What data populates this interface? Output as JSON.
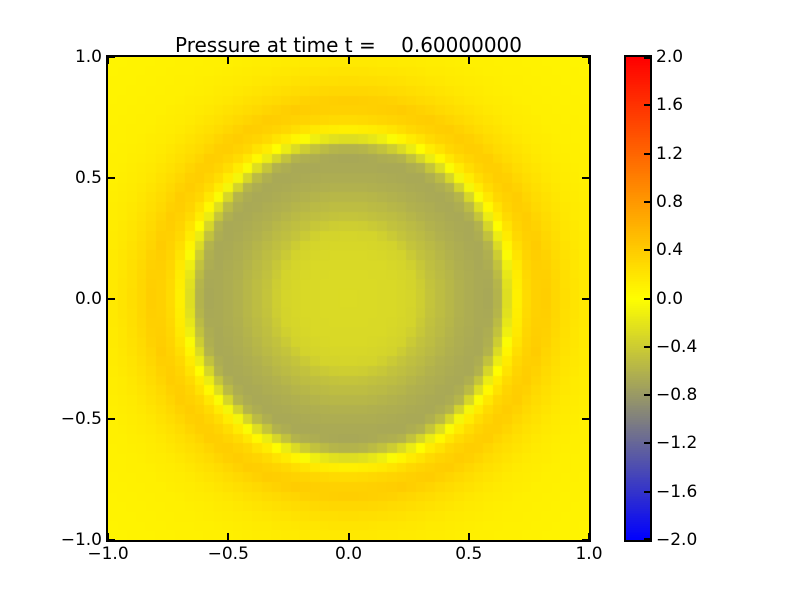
{
  "figure": {
    "background": "#ffffff",
    "frame_color": "#000000"
  },
  "title": "Pressure at time t =    0.60000000",
  "axes": {
    "x_ticks": [
      {
        "value": -1.0,
        "label": "−1.0"
      },
      {
        "value": -0.5,
        "label": "−0.5"
      },
      {
        "value": 0.0,
        "label": "0.0"
      },
      {
        "value": 0.5,
        "label": "0.5"
      },
      {
        "value": 1.0,
        "label": "1.0"
      }
    ],
    "y_ticks": [
      {
        "value": 1.0,
        "label": "1.0"
      },
      {
        "value": 0.5,
        "label": "0.5"
      },
      {
        "value": 0.0,
        "label": "0.0"
      },
      {
        "value": -0.5,
        "label": "−0.5"
      },
      {
        "value": -1.0,
        "label": "−1.0"
      }
    ]
  },
  "colorbar": {
    "vmin": -2.0,
    "vmax": 2.0,
    "ticks": [
      {
        "value": 2.0,
        "label": "2.0"
      },
      {
        "value": 1.6,
        "label": "1.6"
      },
      {
        "value": 1.2,
        "label": "1.2"
      },
      {
        "value": 0.8,
        "label": "0.8"
      },
      {
        "value": 0.4,
        "label": "0.4"
      },
      {
        "value": 0.0,
        "label": "0.0"
      },
      {
        "value": -0.4,
        "label": "−0.4"
      },
      {
        "value": -0.8,
        "label": "−0.8"
      },
      {
        "value": -1.2,
        "label": "−1.2"
      },
      {
        "value": -1.6,
        "label": "−1.6"
      },
      {
        "value": -2.0,
        "label": "−2.0"
      }
    ]
  },
  "chart_data": {
    "type": "heatmap",
    "title": "Pressure at time t =    0.60000000",
    "time_label": "0.60000000",
    "xlabel": "",
    "ylabel": "",
    "x_range": [
      -1,
      1
    ],
    "y_range": [
      -1,
      1
    ],
    "grid_cells": 50,
    "value_range": [
      -2,
      2
    ],
    "legend_position": "right-colorbar",
    "grid": false,
    "colormap_stops": [
      {
        "value": -2,
        "color": "#0000ff"
      },
      {
        "value": 0,
        "color": "#ffff00"
      },
      {
        "value": 2,
        "color": "#ff0000"
      }
    ],
    "radial_profile": {
      "r": [
        0.0,
        0.2,
        0.28,
        0.35,
        0.41,
        0.47,
        0.53,
        0.58,
        0.62,
        0.645,
        0.675,
        0.7,
        0.75,
        0.81,
        0.88,
        0.95,
        1.0,
        1.1,
        1.25,
        1.45
      ],
      "p": [
        -0.28,
        -0.3,
        -0.34,
        -0.48,
        -0.55,
        -0.62,
        -0.66,
        -0.68,
        -0.6,
        -0.4,
        -0.12,
        0.12,
        0.32,
        0.4,
        0.28,
        0.2,
        0.16,
        0.12,
        0.1,
        0.08
      ]
    }
  }
}
